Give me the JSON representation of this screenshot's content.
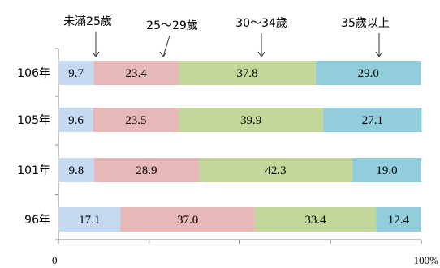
{
  "chart_data": {
    "type": "bar",
    "orientation": "horizontal",
    "stacked": true,
    "categories": [
      "106年",
      "105年",
      "101年",
      "96年"
    ],
    "series": [
      {
        "name": "未滿25歲",
        "values": [
          9.7,
          9.6,
          9.8,
          17.1
        ],
        "color": "#c5d9f1"
      },
      {
        "name": "25～29歲",
        "values": [
          23.4,
          23.5,
          28.9,
          37.0
        ],
        "color": "#e6b8b7"
      },
      {
        "name": "30～34歲",
        "values": [
          37.8,
          39.9,
          42.3,
          33.4
        ],
        "color": "#c4d79b"
      },
      {
        "name": "35歲以上",
        "values": [
          29.0,
          27.1,
          19.0,
          12.4
        ],
        "color": "#92cddc"
      }
    ],
    "xlim": [
      0,
      100
    ],
    "x_ticks": [
      0,
      100
    ],
    "x_tick_labels": [
      "0",
      "100%"
    ],
    "legend_placement": "top"
  }
}
